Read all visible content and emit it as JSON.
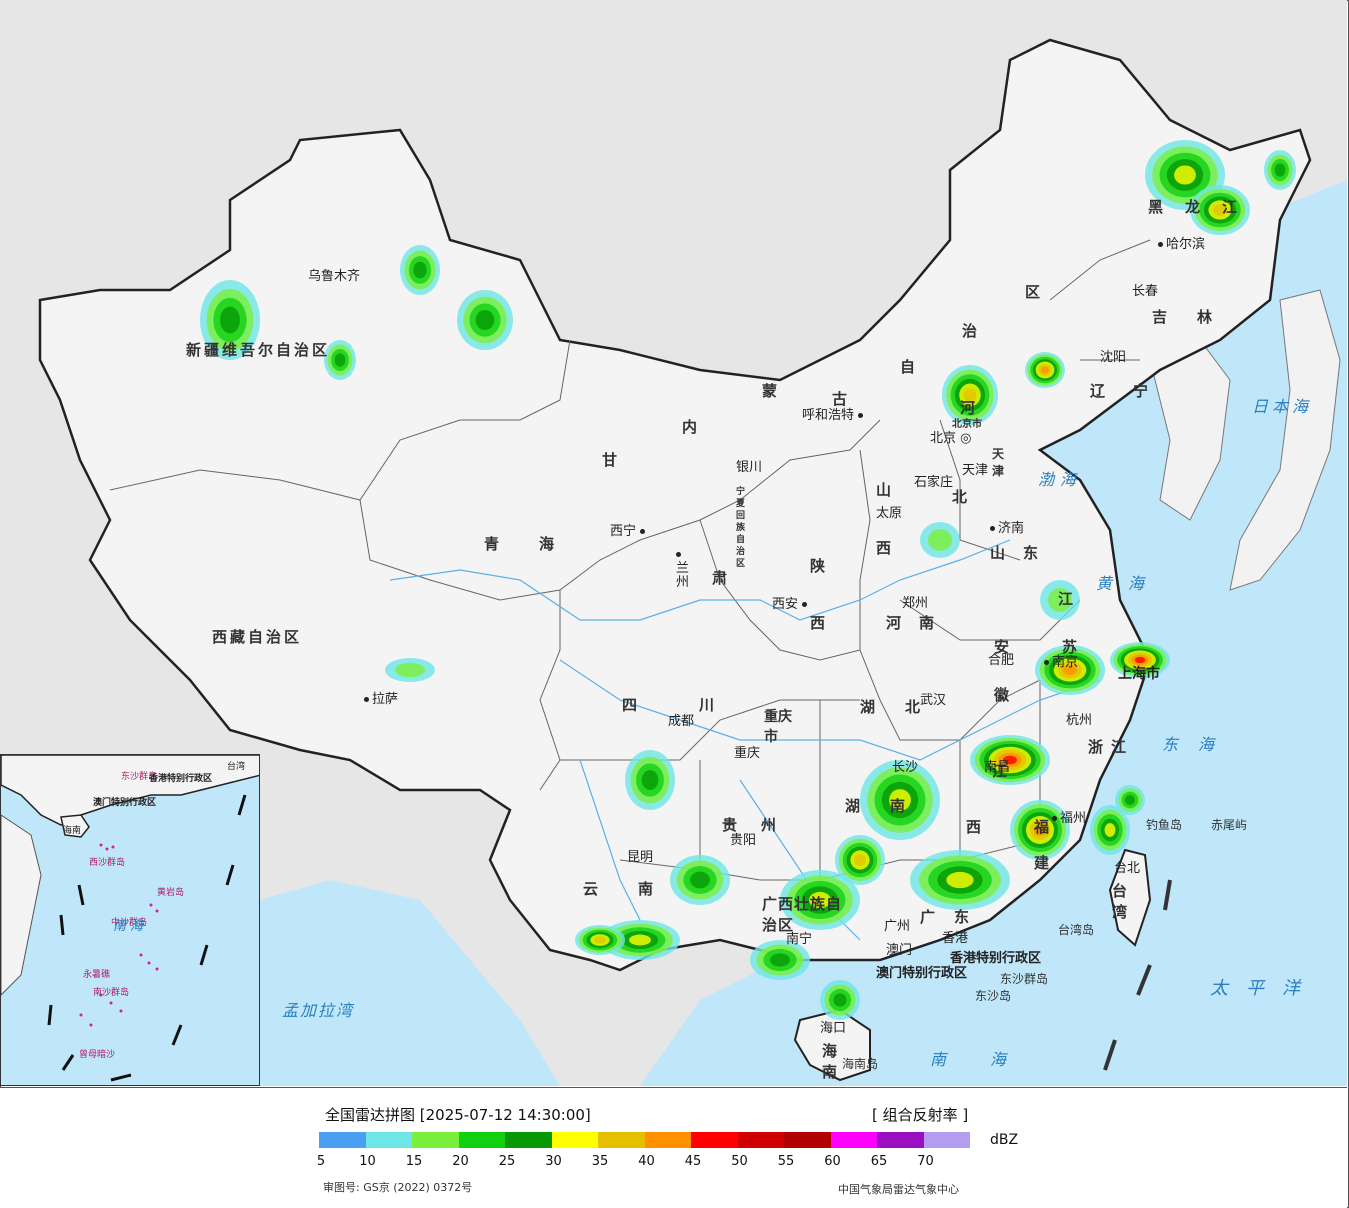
{
  "legend": {
    "title": "全国雷达拼图 [2025-07-12 14:30:00]",
    "product": "[ 组合反射率 ]",
    "unit": "dBZ",
    "ticks": [
      "5",
      "10",
      "15",
      "20",
      "25",
      "30",
      "35",
      "40",
      "45",
      "50",
      "55",
      "60",
      "65",
      "70"
    ],
    "colors": [
      "#4aa0f0",
      "#6ee6e6",
      "#7af03c",
      "#10d010",
      "#089808",
      "#ffff00",
      "#e6c000",
      "#ff9000",
      "#ff0000",
      "#d00000",
      "#b00000",
      "#ff00ff",
      "#9a10c0",
      "#b49cf0"
    ]
  },
  "footer": {
    "approval": "审图号: GS京 (2022) 0372号",
    "credit": "中国气象局雷达气象中心"
  },
  "cities": {
    "urumqi": "乌鲁木齐",
    "lhasa": "拉萨",
    "xining": "西宁",
    "lanzhou": "兰州",
    "yinchuan": "银川",
    "hohhot": "呼和浩特",
    "beijing": "北京",
    "tianjin": "天津",
    "shijiazhuang": "石家庄",
    "taiyuan": "太原",
    "jinan": "济南",
    "zhengzhou": "郑州",
    "xian": "西安",
    "chengdu": "成都",
    "chongqing": "重庆",
    "wuhan": "武汉",
    "hefei": "合肥",
    "nanjing": "南京",
    "shanghai": "上海市",
    "hangzhou": "杭州",
    "changsha": "长沙",
    "nanchang": "南昌",
    "fuzhou": "福州",
    "guiyang": "贵阳",
    "kunming": "昆明",
    "nanning": "南宁",
    "guangzhou": "广州",
    "hongkong": "香港",
    "macau": "澳门",
    "haikou": "海口",
    "taibei": "台北",
    "harbin": "哈尔滨",
    "changchun": "长春",
    "shenyang": "沈阳"
  },
  "provinces": {
    "xinjiang": "新疆维吾尔自治区",
    "xizang": "西藏自治区",
    "qinghai": "青海",
    "gansu_gan": "甘",
    "gansu_su": "肃",
    "neimenggu_nei": "内",
    "neimenggu_meng": "蒙",
    "neimenggu_gu": "古",
    "neimenggu_zi": "自",
    "neimenggu_zhi": "治",
    "neimenggu_qu": "区",
    "heilongjiang": "黑龙江",
    "jilin": "吉林",
    "liaoning": "辽宁",
    "hebei_he": "河",
    "hebei_bei": "北",
    "shanxi_shan": "山",
    "shanxi_xi": "西",
    "shandong": "山东",
    "shaanxi_shan": "陕",
    "shaanxi_xi": "西",
    "henan": "河南",
    "sichuan": "四川",
    "hubei": "湖北",
    "hunan": "湖南",
    "anhui_an": "安",
    "anhui_hui": "徽",
    "jiangsu_jiang": "江",
    "jiangsu_su": "苏",
    "zhejiang": "浙江",
    "jiangxi_jiang": "江",
    "jiangxi_xi": "西",
    "fujian_fu": "福",
    "fujian_jian": "建",
    "guizhou": "贵州",
    "yunnan": "云南",
    "guangxi": "广西壮族自治区",
    "guangdong_guang": "广",
    "guangdong_dong": "东",
    "hainan": "海南",
    "taiwan": "台湾",
    "chongqing_shi": "重庆市",
    "ningxia": "宁夏回族自治区",
    "beijing_shi": "北京市",
    "tianjin_shi": "天津",
    "hk_sar": "香港特别行政区",
    "macau_sar": "澳门特别行政区"
  },
  "seas": {
    "bohai": "渤海",
    "huanghai": "黄海",
    "donghai": "东海",
    "nanhai": "南海",
    "taipingyang": "太平洋",
    "ribenhai": "日本海",
    "mengjialawan": "孟加拉湾"
  },
  "islands": {
    "diaoyudao": "钓鱼岛",
    "chiweiyu": "赤尾屿",
    "taiwandao": "台湾岛",
    "hainandao": "海南岛",
    "dongshaqundao": "东沙群岛",
    "dongshadao": "东沙岛"
  },
  "inset": {
    "sea": "南海",
    "labels": [
      "东沙群岛",
      "西沙群岛",
      "中沙群岛",
      "黄岩岛",
      "南沙群岛",
      "永暑礁",
      "曾母暗沙",
      "香港特别行政区",
      "澳门特别行政区",
      "台湾",
      "海南"
    ]
  }
}
